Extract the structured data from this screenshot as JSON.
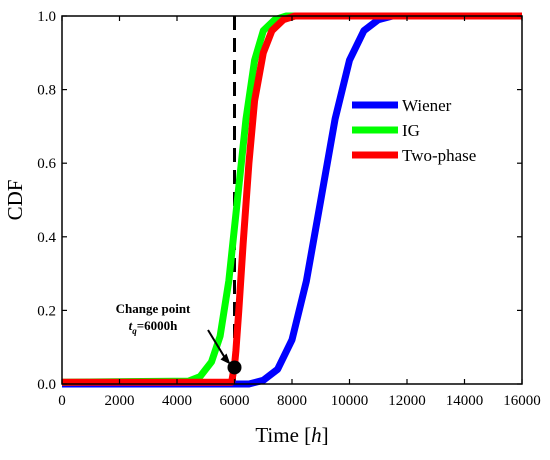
{
  "chart_data": {
    "type": "line",
    "title": "",
    "xlabel": "Time",
    "xlabel_unit": "h",
    "ylabel": "CDF",
    "xlim": [
      0,
      16000
    ],
    "ylim": [
      0,
      1.0
    ],
    "xticks": [
      0,
      2000,
      4000,
      6000,
      8000,
      10000,
      12000,
      14000,
      16000
    ],
    "yticks": [
      0.0,
      0.2,
      0.4,
      0.6,
      0.8,
      1.0
    ],
    "ytick_labels": [
      "0.0",
      "0.2",
      "0.4",
      "0.6",
      "0.8",
      "1.0"
    ],
    "grid": false,
    "legend_position": "right-middle",
    "series": [
      {
        "name": "Wiener",
        "color": "#0000ff",
        "x": [
          0,
          6500,
          7000,
          7500,
          8000,
          8500,
          9000,
          9500,
          10000,
          10500,
          11000,
          11500,
          12000,
          16000
        ],
        "y": [
          0,
          0.0,
          0.01,
          0.04,
          0.12,
          0.28,
          0.5,
          0.72,
          0.88,
          0.96,
          0.99,
          1.0,
          1.0,
          1.0
        ]
      },
      {
        "name": "IG",
        "color": "#00ff00",
        "x": [
          0,
          4400,
          4800,
          5200,
          5500,
          5800,
          6100,
          6400,
          6700,
          7000,
          7400,
          7800,
          8000,
          16000
        ],
        "y": [
          0.005,
          0.008,
          0.02,
          0.06,
          0.13,
          0.28,
          0.5,
          0.72,
          0.88,
          0.96,
          0.99,
          1.0,
          1.0,
          1.0
        ]
      },
      {
        "name": "Two-phase",
        "color": "#ff0000",
        "x": [
          0,
          5900,
          6000,
          6050,
          6150,
          6300,
          6500,
          6700,
          7000,
          7300,
          7700,
          8100,
          8500,
          16000
        ],
        "y": [
          0.005,
          0.005,
          0.05,
          0.09,
          0.2,
          0.38,
          0.6,
          0.77,
          0.9,
          0.96,
          0.99,
          1.0,
          1.0,
          1.0
        ]
      }
    ],
    "reference_line": {
      "x": 6000,
      "style": "dashed",
      "color": "#000000"
    },
    "change_point": {
      "x": 6000,
      "y": 0.045,
      "label_line1": "Change point",
      "label_sym": "t",
      "label_sub": "q",
      "label_rest": "=6000h"
    }
  }
}
